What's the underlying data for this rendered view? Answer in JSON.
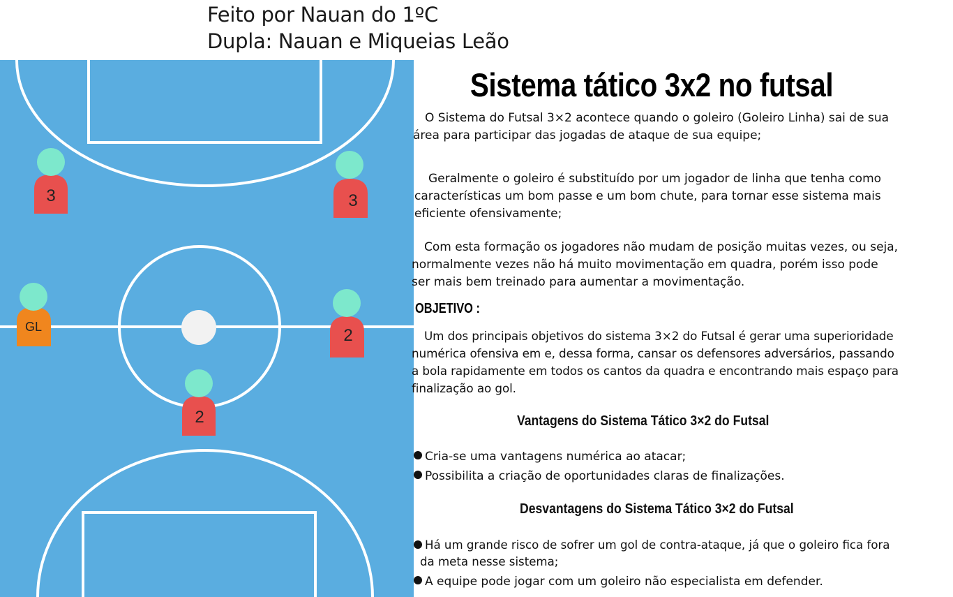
{
  "header": {
    "line1": "Feito por Nauan do 1ºC",
    "line2": "Dupla: Nauan e Miqueias Leão"
  },
  "title": "Sistema tático 3x2 no futsal",
  "colors": {
    "court": "#5aade0",
    "court_lines": "#ffffff",
    "player_head": "#7de8cc",
    "player_body": "#e8504e",
    "goalkeeper_body": "#f0861e",
    "ball": "#f2f2f2"
  },
  "players": [
    {
      "label": "3",
      "role": "player"
    },
    {
      "label": "3",
      "role": "player"
    },
    {
      "label": "GL",
      "role": "goalkeeper"
    },
    {
      "label": "2",
      "role": "player"
    },
    {
      "label": "2",
      "role": "player"
    }
  ],
  "paragraphs": [
    {
      "lines": [
        "O Sistema do Futsal 3×2 acontece quando o goleiro (Goleiro Linha) sai de sua",
        "área para participar das jogadas de ataque de sua equipe;"
      ]
    },
    {
      "lines": [
        "Geralmente o goleiro é substituído por um jogador de linha que tenha como",
        "características um bom passe e um bom chute, para tornar esse sistema mais",
        "eficiente ofensivamente;"
      ]
    },
    {
      "lines": [
        "Com esta formação os jogadores não mudam de posição muitas vezes, ou seja,",
        "normalmente vezes não há muito movimentação em quadra, porém isso pode",
        "ser mais bem treinado para aumentar a movimentação."
      ]
    }
  ],
  "objetivo": {
    "heading": "OBJETIVO :",
    "lines": [
      "Um dos principais objetivos do sistema 3×2 do Futsal é gerar uma superioridade",
      "numérica ofensiva em e, dessa forma, cansar os defensores adversários, passando",
      "a bola rapidamente em todos os cantos da quadra e encontrando mais espaço para",
      "finalização ao gol."
    ]
  },
  "vantagens": {
    "heading": "Vantagens do Sistema Tático 3×2 do Futsal",
    "items": [
      "Cria-se uma vantagens numérica ao atacar;",
      "Possibilita a criação de oportunidades claras de finalizações."
    ]
  },
  "desvantagens": {
    "heading": "Desvantagens do Sistema Tático 3×2 do Futsal",
    "items": [
      {
        "lines": [
          "Há um grande risco de sofrer um gol de contra-ataque, já que o goleiro fica fora",
          "da meta nesse sistema;"
        ]
      },
      {
        "lines": [
          "A equipe pode jogar com um goleiro não especialista em defender."
        ]
      }
    ]
  }
}
